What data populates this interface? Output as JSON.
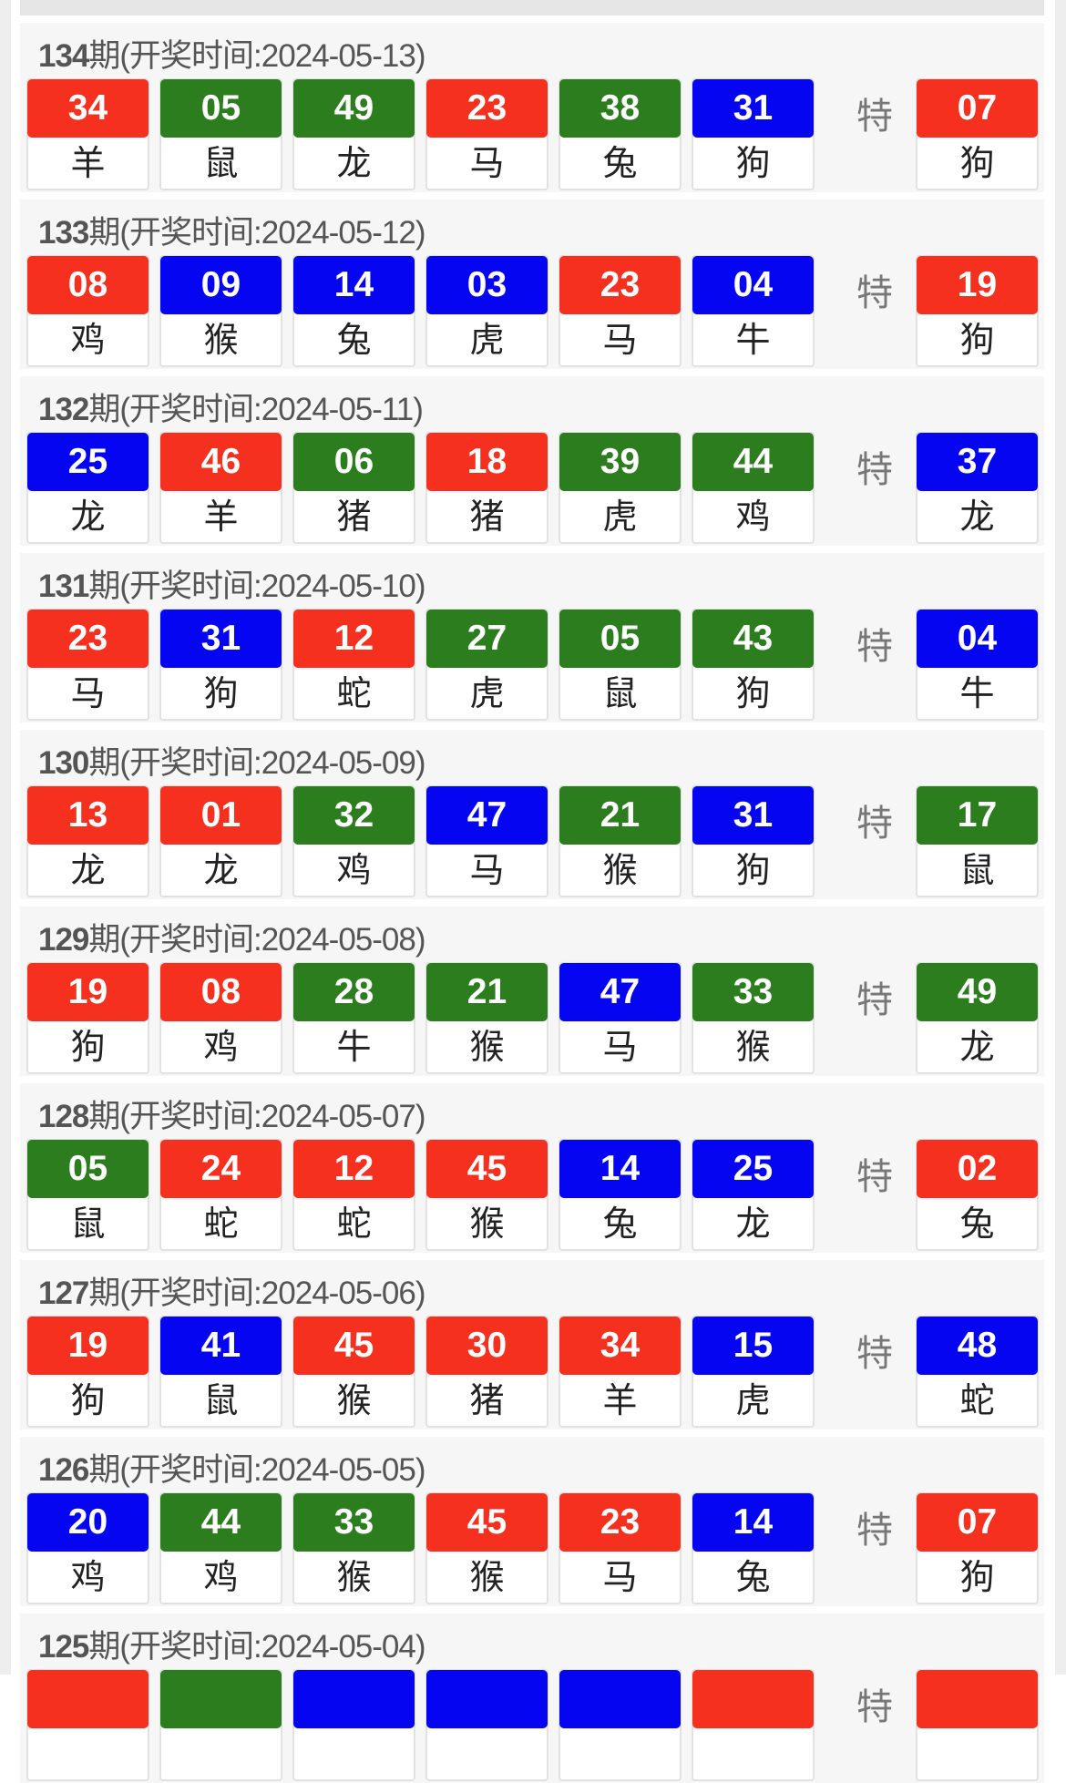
{
  "special_label": "特",
  "title_prefix": "期(开奖时间:",
  "title_suffix": ")",
  "colors": {
    "red": "#f5301f",
    "green": "#2b7d1d",
    "blue": "#0505f2"
  },
  "draws": [
    {
      "period": "134",
      "date": "2024-05-13",
      "balls": [
        [
          "34",
          "羊",
          "red"
        ],
        [
          "05",
          "鼠",
          "green"
        ],
        [
          "49",
          "龙",
          "green"
        ],
        [
          "23",
          "马",
          "red"
        ],
        [
          "38",
          "兔",
          "green"
        ],
        [
          "31",
          "狗",
          "blue"
        ]
      ],
      "special": [
        "07",
        "狗",
        "red"
      ]
    },
    {
      "period": "133",
      "date": "2024-05-12",
      "balls": [
        [
          "08",
          "鸡",
          "red"
        ],
        [
          "09",
          "猴",
          "blue"
        ],
        [
          "14",
          "兔",
          "blue"
        ],
        [
          "03",
          "虎",
          "blue"
        ],
        [
          "23",
          "马",
          "red"
        ],
        [
          "04",
          "牛",
          "blue"
        ]
      ],
      "special": [
        "19",
        "狗",
        "red"
      ]
    },
    {
      "period": "132",
      "date": "2024-05-11",
      "balls": [
        [
          "25",
          "龙",
          "blue"
        ],
        [
          "46",
          "羊",
          "red"
        ],
        [
          "06",
          "猪",
          "green"
        ],
        [
          "18",
          "猪",
          "red"
        ],
        [
          "39",
          "虎",
          "green"
        ],
        [
          "44",
          "鸡",
          "green"
        ]
      ],
      "special": [
        "37",
        "龙",
        "blue"
      ]
    },
    {
      "period": "131",
      "date": "2024-05-10",
      "balls": [
        [
          "23",
          "马",
          "red"
        ],
        [
          "31",
          "狗",
          "blue"
        ],
        [
          "12",
          "蛇",
          "red"
        ],
        [
          "27",
          "虎",
          "green"
        ],
        [
          "05",
          "鼠",
          "green"
        ],
        [
          "43",
          "狗",
          "green"
        ]
      ],
      "special": [
        "04",
        "牛",
        "blue"
      ]
    },
    {
      "period": "130",
      "date": "2024-05-09",
      "balls": [
        [
          "13",
          "龙",
          "red"
        ],
        [
          "01",
          "龙",
          "red"
        ],
        [
          "32",
          "鸡",
          "green"
        ],
        [
          "47",
          "马",
          "blue"
        ],
        [
          "21",
          "猴",
          "green"
        ],
        [
          "31",
          "狗",
          "blue"
        ]
      ],
      "special": [
        "17",
        "鼠",
        "green"
      ]
    },
    {
      "period": "129",
      "date": "2024-05-08",
      "balls": [
        [
          "19",
          "狗",
          "red"
        ],
        [
          "08",
          "鸡",
          "red"
        ],
        [
          "28",
          "牛",
          "green"
        ],
        [
          "21",
          "猴",
          "green"
        ],
        [
          "47",
          "马",
          "blue"
        ],
        [
          "33",
          "猴",
          "green"
        ]
      ],
      "special": [
        "49",
        "龙",
        "green"
      ]
    },
    {
      "period": "128",
      "date": "2024-05-07",
      "balls": [
        [
          "05",
          "鼠",
          "green"
        ],
        [
          "24",
          "蛇",
          "red"
        ],
        [
          "12",
          "蛇",
          "red"
        ],
        [
          "45",
          "猴",
          "red"
        ],
        [
          "14",
          "兔",
          "blue"
        ],
        [
          "25",
          "龙",
          "blue"
        ]
      ],
      "special": [
        "02",
        "兔",
        "red"
      ]
    },
    {
      "period": "127",
      "date": "2024-05-06",
      "balls": [
        [
          "19",
          "狗",
          "red"
        ],
        [
          "41",
          "鼠",
          "blue"
        ],
        [
          "45",
          "猴",
          "red"
        ],
        [
          "30",
          "猪",
          "red"
        ],
        [
          "34",
          "羊",
          "red"
        ],
        [
          "15",
          "虎",
          "blue"
        ]
      ],
      "special": [
        "48",
        "蛇",
        "blue"
      ]
    },
    {
      "period": "126",
      "date": "2024-05-05",
      "balls": [
        [
          "20",
          "鸡",
          "blue"
        ],
        [
          "44",
          "鸡",
          "green"
        ],
        [
          "33",
          "猴",
          "green"
        ],
        [
          "45",
          "猴",
          "red"
        ],
        [
          "23",
          "马",
          "red"
        ],
        [
          "14",
          "兔",
          "blue"
        ]
      ],
      "special": [
        "07",
        "狗",
        "red"
      ]
    },
    {
      "period": "125",
      "date": "2024-05-04",
      "balls": [
        [
          "",
          "",
          "red"
        ],
        [
          "",
          "",
          "green"
        ],
        [
          "",
          "",
          "blue"
        ],
        [
          "",
          "",
          "blue"
        ],
        [
          "",
          "",
          "blue"
        ],
        [
          "",
          "",
          "red"
        ]
      ],
      "special": [
        "",
        "",
        "red"
      ]
    }
  ]
}
